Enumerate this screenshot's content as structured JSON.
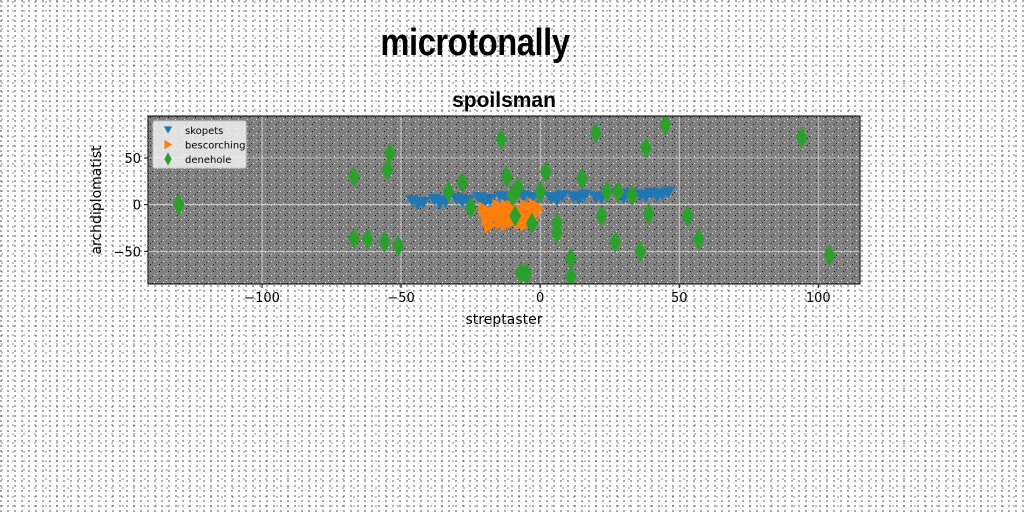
{
  "page_title": "microtonally",
  "chart_data": {
    "type": "scatter",
    "title": "spoilsman",
    "xlabel": "streptaster",
    "ylabel": "archdiplomatist",
    "xlim": [
      -141,
      115
    ],
    "ylim": [
      -85,
      95
    ],
    "xticks": [
      -100,
      -50,
      0,
      50,
      100
    ],
    "yticks": [
      -50,
      0,
      50
    ],
    "grid": true,
    "legend_position": "top-left",
    "plot_background": "#808080",
    "series": [
      {
        "name": "skopets",
        "marker": "triangle-down",
        "color": "#1f77b4",
        "points": [
          [
            -46,
            4
          ],
          [
            -42,
            2
          ],
          [
            -38,
            5
          ],
          [
            -34,
            3
          ],
          [
            -30,
            6
          ],
          [
            -26,
            4
          ],
          [
            -22,
            7
          ],
          [
            -18,
            5
          ],
          [
            -14,
            8
          ],
          [
            -10,
            6
          ],
          [
            -6,
            9
          ],
          [
            -3,
            7
          ],
          [
            0,
            8
          ],
          [
            4,
            7
          ],
          [
            8,
            9
          ],
          [
            12,
            8
          ],
          [
            16,
            10
          ],
          [
            20,
            8
          ],
          [
            24,
            11
          ],
          [
            28,
            9
          ],
          [
            32,
            11
          ],
          [
            36,
            10
          ],
          [
            40,
            12
          ],
          [
            44,
            11
          ],
          [
            46,
            13
          ],
          [
            -44,
            0
          ],
          [
            -36,
            1
          ],
          [
            -28,
            3
          ],
          [
            -20,
            2
          ],
          [
            -12,
            4
          ],
          [
            6,
            5
          ],
          [
            14,
            6
          ],
          [
            22,
            7
          ],
          [
            30,
            7
          ],
          [
            38,
            8
          ],
          [
            42,
            9
          ]
        ]
      },
      {
        "name": "bescorching",
        "marker": "triangle-right",
        "color": "#ff7f0e",
        "points": [
          [
            -20,
            -5
          ],
          [
            -19,
            -15
          ],
          [
            -18,
            -22
          ],
          [
            -16,
            -10
          ],
          [
            -15,
            -2
          ],
          [
            -14,
            -18
          ],
          [
            -13,
            -8
          ],
          [
            -12,
            -20
          ],
          [
            -11,
            -12
          ],
          [
            -10,
            -3
          ],
          [
            -9,
            -16
          ],
          [
            -8,
            -6
          ],
          [
            -7,
            -19
          ],
          [
            -6,
            -11
          ],
          [
            -5,
            -2
          ],
          [
            -4,
            -14
          ],
          [
            -3,
            -7
          ],
          [
            -3,
            -17
          ],
          [
            -2,
            -10
          ],
          [
            -1,
            -4
          ],
          [
            -17,
            -14
          ],
          [
            -12,
            -2
          ],
          [
            -8,
            -14
          ],
          [
            -5,
            -20
          ],
          [
            -2,
            -1
          ]
        ]
      },
      {
        "name": "denehole",
        "marker": "thin-diamond",
        "color": "#2ca02c",
        "points": [
          [
            -130,
            0
          ],
          [
            -67,
            30
          ],
          [
            -67,
            -36
          ],
          [
            -62,
            -37
          ],
          [
            -55,
            37
          ],
          [
            -54,
            55
          ],
          [
            -56,
            -40
          ],
          [
            -51,
            -44
          ],
          [
            -33,
            14
          ],
          [
            -28,
            24
          ],
          [
            -25,
            -3
          ],
          [
            -14,
            70
          ],
          [
            -12,
            30
          ],
          [
            -10,
            10
          ],
          [
            -9,
            -12
          ],
          [
            -7,
            -73
          ],
          [
            -5,
            -74
          ],
          [
            -3,
            -20
          ],
          [
            0,
            14
          ],
          [
            2,
            35
          ],
          [
            6,
            -20
          ],
          [
            6,
            -30
          ],
          [
            11,
            -58
          ],
          [
            11,
            -77
          ],
          [
            15,
            28
          ],
          [
            20,
            77
          ],
          [
            22,
            -12
          ],
          [
            24,
            14
          ],
          [
            27,
            -40
          ],
          [
            28,
            14
          ],
          [
            33,
            10
          ],
          [
            36,
            -50
          ],
          [
            38,
            61
          ],
          [
            39,
            -10
          ],
          [
            45,
            86
          ],
          [
            53,
            -12
          ],
          [
            57,
            -37
          ],
          [
            94,
            72
          ],
          [
            104,
            -54
          ],
          [
            -8,
            18
          ]
        ]
      }
    ]
  }
}
